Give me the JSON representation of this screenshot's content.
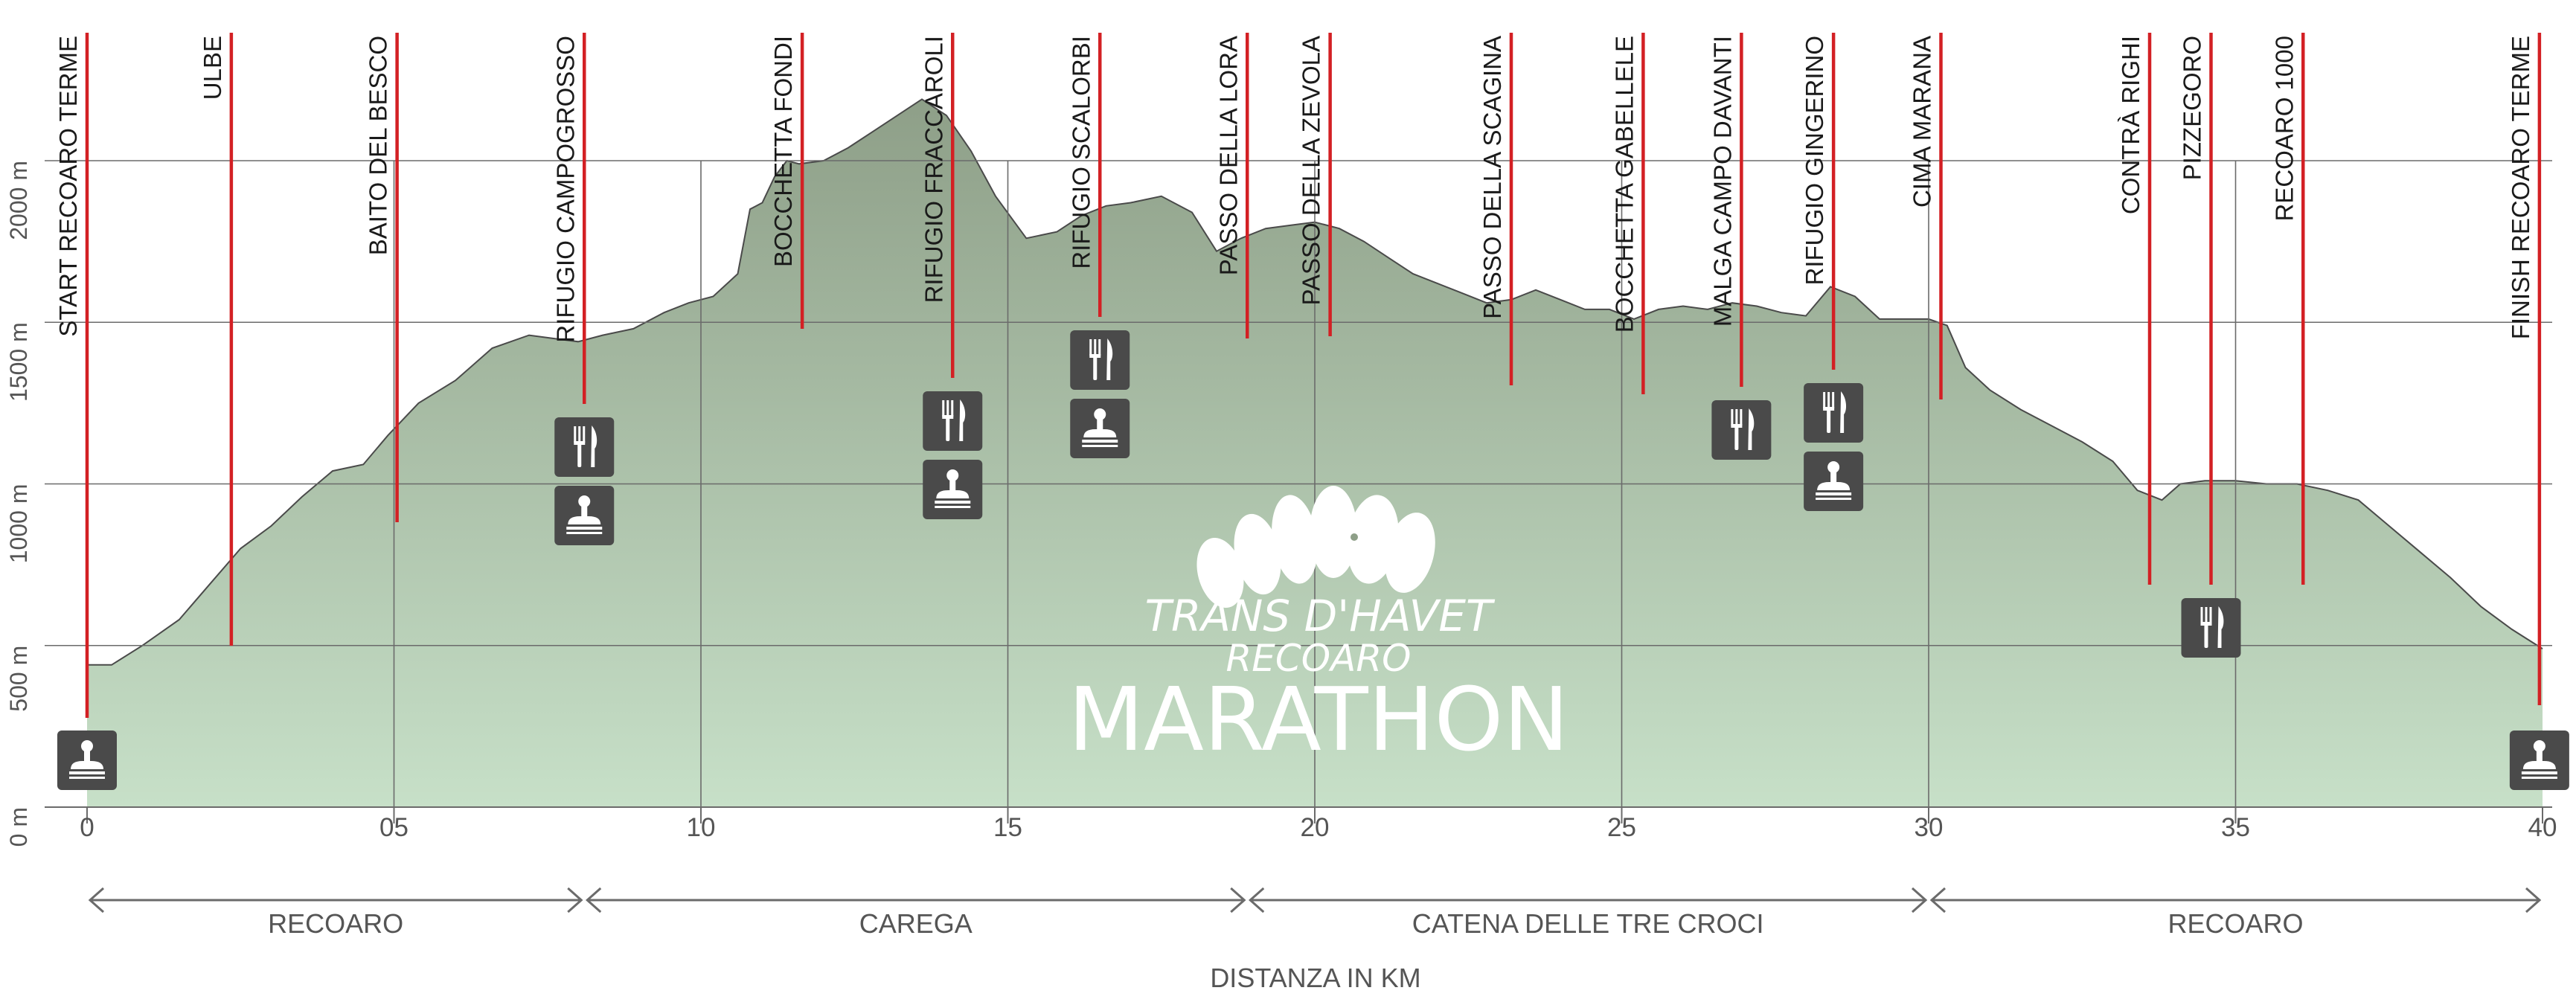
{
  "chart_data": {
    "type": "area",
    "title": "",
    "xlabel": "DISTANZA IN KM",
    "ylabel": "",
    "xlim": [
      0,
      40
    ],
    "ylim": [
      0,
      2300
    ],
    "grid": true,
    "x_ticks": [
      {
        "value": 0,
        "label": "0"
      },
      {
        "value": 5,
        "label": "05"
      },
      {
        "value": 10,
        "label": "10"
      },
      {
        "value": 15,
        "label": "15"
      },
      {
        "value": 20,
        "label": "20"
      },
      {
        "value": 25,
        "label": "25"
      },
      {
        "value": 30,
        "label": "30"
      },
      {
        "value": 35,
        "label": "35"
      },
      {
        "value": 40,
        "label": "40"
      }
    ],
    "y_ticks": [
      {
        "value": 0,
        "label": "0 m"
      },
      {
        "value": 500,
        "label": "500 m"
      },
      {
        "value": 1000,
        "label": "1000 m"
      },
      {
        "value": 1500,
        "label": "1500 m"
      },
      {
        "value": 2000,
        "label": "2000 m"
      }
    ],
    "series": [
      {
        "x": [
          0,
          0.4,
          0.9,
          1.5,
          2.0,
          2.5,
          3.0,
          3.5,
          4.0,
          4.5,
          4.9,
          5.4,
          6.0,
          6.6,
          7.2,
          7.6,
          8.0,
          8.4,
          8.9,
          9.4,
          9.8,
          10.2,
          10.6,
          10.8,
          11.0,
          11.2,
          11.4,
          11.6,
          12.0,
          12.4,
          12.8,
          13.2,
          13.6,
          14.0,
          14.4,
          14.8,
          15.3,
          15.8,
          16.2,
          16.6,
          17.0,
          17.5,
          18.0,
          18.4,
          18.8,
          19.2,
          19.6,
          20.0,
          20.4,
          20.8,
          21.2,
          21.6,
          22.0,
          22.4,
          22.8,
          23.2,
          23.6,
          24.0,
          24.4,
          24.8,
          25.2,
          25.6,
          26.0,
          26.4,
          26.8,
          27.2,
          27.6,
          28.0,
          28.4,
          28.8,
          29.2,
          29.6,
          30.0,
          30.3,
          30.6,
          31.0,
          31.5,
          32.0,
          32.5,
          33.0,
          33.4,
          33.8,
          34.1,
          34.5,
          35.0,
          35.5,
          36.0,
          36.5,
          37.0,
          37.5,
          38.0,
          38.5,
          39.0,
          39.5,
          40.0
        ],
        "values": [
          440,
          440,
          500,
          580,
          690,
          800,
          870,
          960,
          1040,
          1060,
          1150,
          1250,
          1320,
          1420,
          1460,
          1450,
          1440,
          1460,
          1480,
          1530,
          1560,
          1580,
          1650,
          1850,
          1870,
          1950,
          2000,
          1990,
          2000,
          2040,
          2090,
          2140,
          2190,
          2140,
          2030,
          1890,
          1760,
          1780,
          1830,
          1860,
          1870,
          1890,
          1840,
          1720,
          1760,
          1790,
          1800,
          1810,
          1790,
          1750,
          1700,
          1650,
          1620,
          1590,
          1560,
          1570,
          1600,
          1570,
          1540,
          1540,
          1510,
          1540,
          1550,
          1540,
          1560,
          1550,
          1530,
          1520,
          1610,
          1580,
          1510,
          1510,
          1510,
          1490,
          1360,
          1290,
          1230,
          1180,
          1130,
          1070,
          980,
          950,
          1000,
          1010,
          1010,
          1000,
          1000,
          980,
          950,
          870,
          790,
          710,
          620,
          550,
          490
        ]
      }
    ],
    "waypoints": [
      {
        "km": 0.0,
        "label": "START RECOARO TERME",
        "icons": [
          "stamp-icon"
        ]
      },
      {
        "km": 2.35,
        "label": "ULBE",
        "icons": []
      },
      {
        "km": 5.05,
        "label": "BAITO DEL BESCO",
        "icons": []
      },
      {
        "km": 8.1,
        "label": "RIFUGIO CAMPOGROSSO",
        "icons": [
          "fork-knife-icon",
          "stamp-icon"
        ]
      },
      {
        "km": 11.65,
        "label": "BOCCHETTA FONDI",
        "icons": []
      },
      {
        "km": 14.1,
        "label": "RIFUGIO FRACCAROLI",
        "icons": [
          "fork-knife-icon",
          "stamp-icon"
        ]
      },
      {
        "km": 16.5,
        "label": "RIFUGIO SCALORBI",
        "icons": [
          "fork-knife-icon",
          "stamp-icon"
        ]
      },
      {
        "km": 18.9,
        "label": "PASSO DELLA LORA",
        "icons": []
      },
      {
        "km": 20.25,
        "label": "PASSO DELLA ZEVOLA",
        "icons": []
      },
      {
        "km": 23.2,
        "label": "PASSO DELLA SCAGINA",
        "icons": []
      },
      {
        "km": 25.35,
        "label": "BOCCHETTA GABELLELE",
        "icons": []
      },
      {
        "km": 26.95,
        "label": "MALGA CAMPO DAVANTI",
        "icons": [
          "fork-knife-icon"
        ]
      },
      {
        "km": 28.45,
        "label": "RIFUGIO GINGERINO",
        "icons": [
          "fork-knife-icon",
          "stamp-icon"
        ]
      },
      {
        "km": 30.2,
        "label": "CIMA MARANA",
        "icons": []
      },
      {
        "km": 33.6,
        "label": "CONTRÀ RIGHI",
        "icons": []
      },
      {
        "km": 34.6,
        "label": "PIZZEGORO",
        "icons": [
          "fork-knife-icon"
        ]
      },
      {
        "km": 36.1,
        "label": "RECOARO 1000",
        "icons": []
      },
      {
        "km": 39.95,
        "label": "FINISH RECOARO TERME",
        "icons": [
          "stamp-icon"
        ]
      }
    ],
    "sections": [
      {
        "from": 0,
        "to": 8.1,
        "label": "RECOARO"
      },
      {
        "from": 8.1,
        "to": 18.9,
        "label": "CAREGA"
      },
      {
        "from": 18.9,
        "to": 30.0,
        "label": "CATENA DELLE TRE CROCI"
      },
      {
        "from": 30.0,
        "to": 40.0,
        "label": "RECOARO"
      }
    ],
    "logo_text": {
      "line1": "TRANS D'HAVET",
      "line2": "RECOARO",
      "line3": "MARATHON"
    },
    "colors": {
      "area_top": "#8e9f88",
      "area_bottom": "#c7e0c8",
      "outline": "#4a4a4a",
      "grid": "#6b6b6b",
      "marker": "#d32024",
      "icon_bg": "#4a4a4a",
      "text": "#1a1a1a",
      "axis_text": "#555555"
    }
  }
}
